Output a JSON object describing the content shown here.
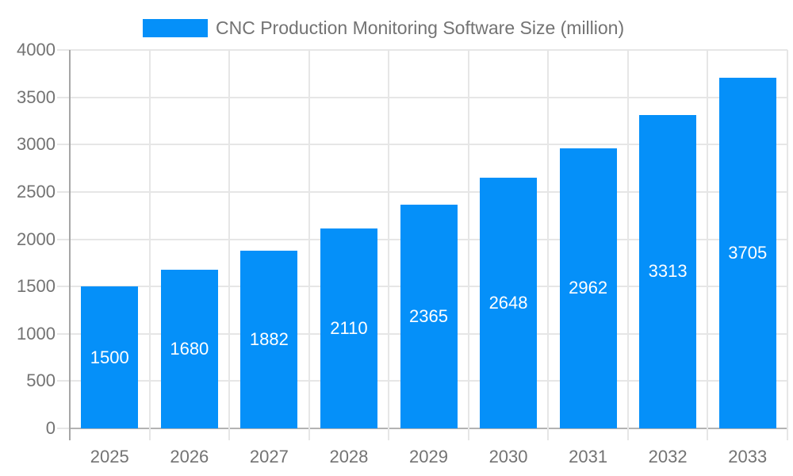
{
  "legend": {
    "label": "CNC Production Monitoring Software Size (million)"
  },
  "colors": {
    "bar": "#0590f9",
    "grid": "#e6e6e6",
    "baseline": "#b3b3b3",
    "axis_line": "#a6a6a6",
    "tick_text": "#737373",
    "bar_label_text": "#ffffff",
    "background": "#ffffff"
  },
  "chart_data": {
    "type": "bar",
    "title": "CNC Production Monitoring Software Size (million)",
    "categories": [
      "2025",
      "2026",
      "2027",
      "2028",
      "2029",
      "2030",
      "2031",
      "2032",
      "2033"
    ],
    "values": [
      1500,
      1680,
      1882,
      2110,
      2365,
      2648,
      2962,
      3313,
      3705
    ],
    "xlabel": "",
    "ylabel": "",
    "ylim": [
      0,
      4000
    ],
    "yticks": [
      0,
      500,
      1000,
      1500,
      2000,
      2500,
      3000,
      3500,
      4000
    ],
    "grid": true,
    "legend_position": "top-center",
    "value_labels": "inside-center"
  }
}
